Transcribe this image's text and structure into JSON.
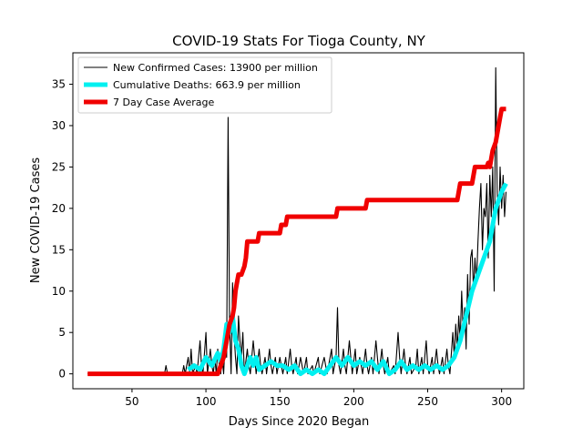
{
  "chart_data": {
    "type": "line",
    "title": "COVID-19 Stats For Tioga County, NY",
    "xlabel": "Days Since 2020 Began",
    "ylabel": "New COVID-19 Cases",
    "xlim": [
      10,
      315
    ],
    "ylim": [
      -1.8,
      38.8
    ],
    "xticks": [
      50,
      100,
      150,
      200,
      250,
      300
    ],
    "yticks": [
      0,
      5,
      10,
      15,
      20,
      25,
      30,
      35
    ],
    "grid": false,
    "legend_position": "top-left",
    "series": [
      {
        "name": "New Confirmed Cases: 13900 per million",
        "color": "#000000",
        "style": "thin",
        "points": [
          [
            20,
            0
          ],
          [
            72,
            0
          ],
          [
            73,
            1
          ],
          [
            74,
            0
          ],
          [
            84,
            0
          ],
          [
            85,
            1
          ],
          [
            86,
            0
          ],
          [
            88,
            2
          ],
          [
            89,
            0
          ],
          [
            90,
            3
          ],
          [
            91,
            0
          ],
          [
            93,
            1
          ],
          [
            94,
            0
          ],
          [
            96,
            4
          ],
          [
            97,
            1
          ],
          [
            98,
            0
          ],
          [
            100,
            5
          ],
          [
            101,
            0
          ],
          [
            103,
            3
          ],
          [
            104,
            1
          ],
          [
            105,
            0
          ],
          [
            106,
            2
          ],
          [
            107,
            0
          ],
          [
            108,
            3
          ],
          [
            109,
            1
          ],
          [
            110,
            0
          ],
          [
            111,
            2
          ],
          [
            112,
            0
          ],
          [
            113,
            4
          ],
          [
            114,
            2
          ],
          [
            115,
            31
          ],
          [
            116,
            6
          ],
          [
            117,
            0
          ],
          [
            118,
            11
          ],
          [
            119,
            5
          ],
          [
            120,
            2
          ],
          [
            121,
            0
          ],
          [
            122,
            7
          ],
          [
            123,
            4
          ],
          [
            124,
            2
          ],
          [
            125,
            5
          ],
          [
            126,
            0
          ],
          [
            128,
            3
          ],
          [
            129,
            1
          ],
          [
            130,
            0
          ],
          [
            132,
            4
          ],
          [
            133,
            2
          ],
          [
            134,
            0
          ],
          [
            136,
            3
          ],
          [
            137,
            1
          ],
          [
            138,
            0
          ],
          [
            140,
            2
          ],
          [
            141,
            0
          ],
          [
            143,
            3
          ],
          [
            144,
            1
          ],
          [
            145,
            0
          ],
          [
            147,
            2
          ],
          [
            148,
            0
          ],
          [
            150,
            2
          ],
          [
            151,
            1
          ],
          [
            152,
            0
          ],
          [
            154,
            2
          ],
          [
            155,
            0
          ],
          [
            157,
            3
          ],
          [
            158,
            1
          ],
          [
            159,
            0
          ],
          [
            161,
            2
          ],
          [
            162,
            0
          ],
          [
            164,
            2
          ],
          [
            165,
            1
          ],
          [
            166,
            0
          ],
          [
            168,
            2
          ],
          [
            169,
            0
          ],
          [
            172,
            1
          ],
          [
            173,
            0
          ],
          [
            176,
            2
          ],
          [
            177,
            0
          ],
          [
            180,
            2
          ],
          [
            181,
            1
          ],
          [
            182,
            0
          ],
          [
            185,
            3
          ],
          [
            186,
            0
          ],
          [
            188,
            2
          ],
          [
            189,
            8
          ],
          [
            190,
            1
          ],
          [
            191,
            0
          ],
          [
            193,
            3
          ],
          [
            194,
            1
          ],
          [
            195,
            0
          ],
          [
            197,
            4
          ],
          [
            198,
            2
          ],
          [
            199,
            0
          ],
          [
            201,
            3
          ],
          [
            202,
            0
          ],
          [
            204,
            2
          ],
          [
            205,
            1
          ],
          [
            206,
            0
          ],
          [
            208,
            3
          ],
          [
            209,
            1
          ],
          [
            210,
            0
          ],
          [
            212,
            2
          ],
          [
            213,
            0
          ],
          [
            215,
            4
          ],
          [
            216,
            2
          ],
          [
            217,
            0
          ],
          [
            219,
            3
          ],
          [
            220,
            1
          ],
          [
            221,
            0
          ],
          [
            223,
            2
          ],
          [
            224,
            0
          ],
          [
            227,
            1
          ],
          [
            228,
            0
          ],
          [
            230,
            5
          ],
          [
            231,
            2
          ],
          [
            232,
            0
          ],
          [
            234,
            3
          ],
          [
            235,
            1
          ],
          [
            236,
            0
          ],
          [
            238,
            2
          ],
          [
            239,
            0
          ],
          [
            242,
            1
          ],
          [
            243,
            3
          ],
          [
            244,
            0
          ],
          [
            246,
            2
          ],
          [
            247,
            0
          ],
          [
            249,
            4
          ],
          [
            250,
            1
          ],
          [
            251,
            0
          ],
          [
            253,
            2
          ],
          [
            254,
            0
          ],
          [
            256,
            3
          ],
          [
            257,
            1
          ],
          [
            258,
            0
          ],
          [
            260,
            2
          ],
          [
            261,
            0
          ],
          [
            263,
            3
          ],
          [
            264,
            1
          ],
          [
            265,
            0
          ],
          [
            267,
            5
          ],
          [
            268,
            2
          ],
          [
            269,
            6
          ],
          [
            270,
            3
          ],
          [
            271,
            7
          ],
          [
            272,
            4
          ],
          [
            273,
            10
          ],
          [
            274,
            5
          ],
          [
            275,
            8
          ],
          [
            276,
            3
          ],
          [
            277,
            12
          ],
          [
            278,
            6
          ],
          [
            279,
            14
          ],
          [
            280,
            15
          ],
          [
            281,
            10
          ],
          [
            282,
            14
          ],
          [
            283,
            11
          ],
          [
            284,
            16
          ],
          [
            285,
            20
          ],
          [
            286,
            23
          ],
          [
            287,
            15
          ],
          [
            288,
            20
          ],
          [
            289,
            19
          ],
          [
            290,
            23
          ],
          [
            291,
            14
          ],
          [
            292,
            24
          ],
          [
            293,
            19
          ],
          [
            294,
            25
          ],
          [
            295,
            10
          ],
          [
            296,
            37
          ],
          [
            297,
            22
          ],
          [
            298,
            18
          ],
          [
            299,
            25
          ],
          [
            300,
            20
          ],
          [
            301,
            24
          ],
          [
            302,
            19
          ],
          [
            303,
            22
          ]
        ]
      },
      {
        "name": "Cumulative Deaths: 663.9 per million",
        "color": "#00f0f0",
        "style": "medium",
        "points": [
          [
            88,
            0.5
          ],
          [
            92,
            1
          ],
          [
            96,
            0.5
          ],
          [
            100,
            2
          ],
          [
            104,
            1
          ],
          [
            108,
            2.5
          ],
          [
            110,
            1.5
          ],
          [
            112,
            3
          ],
          [
            114,
            6
          ],
          [
            116,
            5
          ],
          [
            118,
            7
          ],
          [
            120,
            4
          ],
          [
            122,
            3
          ],
          [
            124,
            1
          ],
          [
            126,
            0
          ],
          [
            128,
            1
          ],
          [
            130,
            2
          ],
          [
            132,
            1
          ],
          [
            134,
            2
          ],
          [
            136,
            0.5
          ],
          [
            140,
            1
          ],
          [
            144,
            1.5
          ],
          [
            148,
            1
          ],
          [
            152,
            1
          ],
          [
            156,
            0.5
          ],
          [
            160,
            1
          ],
          [
            164,
            0
          ],
          [
            168,
            0.5
          ],
          [
            172,
            0
          ],
          [
            176,
            0.5
          ],
          [
            180,
            0
          ],
          [
            184,
            1
          ],
          [
            188,
            2
          ],
          [
            192,
            1
          ],
          [
            196,
            2
          ],
          [
            200,
            1
          ],
          [
            204,
            1.5
          ],
          [
            208,
            1
          ],
          [
            212,
            1.5
          ],
          [
            216,
            0.5
          ],
          [
            220,
            1.5
          ],
          [
            224,
            0
          ],
          [
            228,
            0.5
          ],
          [
            232,
            1.5
          ],
          [
            236,
            0.5
          ],
          [
            240,
            1
          ],
          [
            244,
            0.5
          ],
          [
            248,
            1
          ],
          [
            252,
            0.5
          ],
          [
            256,
            1
          ],
          [
            260,
            0.5
          ],
          [
            264,
            1
          ],
          [
            268,
            2
          ],
          [
            272,
            4
          ],
          [
            276,
            7
          ],
          [
            280,
            10
          ],
          [
            284,
            12
          ],
          [
            288,
            14
          ],
          [
            292,
            16
          ],
          [
            294,
            18
          ],
          [
            296,
            20
          ],
          [
            300,
            22
          ],
          [
            303,
            23
          ]
        ]
      },
      {
        "name": "7 Day Case Average",
        "color": "#f00000",
        "style": "thick",
        "points": [
          [
            20,
            0
          ],
          [
            108,
            0
          ],
          [
            110,
            1
          ],
          [
            112,
            2
          ],
          [
            114,
            4
          ],
          [
            116,
            6
          ],
          [
            118,
            7
          ],
          [
            119,
            8
          ],
          [
            120,
            10
          ],
          [
            121,
            11
          ],
          [
            122,
            12
          ],
          [
            124,
            12
          ],
          [
            126,
            13
          ],
          [
            127,
            14
          ],
          [
            128,
            16
          ],
          [
            130,
            16
          ],
          [
            135,
            16
          ],
          [
            136,
            17
          ],
          [
            145,
            17
          ],
          [
            150,
            17
          ],
          [
            151,
            18
          ],
          [
            154,
            18
          ],
          [
            155,
            19
          ],
          [
            160,
            19
          ],
          [
            170,
            19
          ],
          [
            180,
            19
          ],
          [
            188,
            19
          ],
          [
            189,
            20
          ],
          [
            200,
            20
          ],
          [
            208,
            20
          ],
          [
            209,
            21
          ],
          [
            220,
            21
          ],
          [
            240,
            21
          ],
          [
            260,
            21
          ],
          [
            270,
            21
          ],
          [
            271,
            22
          ],
          [
            272,
            23
          ],
          [
            280,
            23
          ],
          [
            281,
            24
          ],
          [
            282,
            25
          ],
          [
            290,
            25
          ],
          [
            291,
            25.5
          ],
          [
            292,
            25
          ],
          [
            293,
            26
          ],
          [
            294,
            27
          ],
          [
            296,
            28
          ],
          [
            297,
            29
          ],
          [
            298,
            30
          ],
          [
            299,
            31
          ],
          [
            300,
            32
          ],
          [
            303,
            32
          ]
        ]
      }
    ]
  }
}
